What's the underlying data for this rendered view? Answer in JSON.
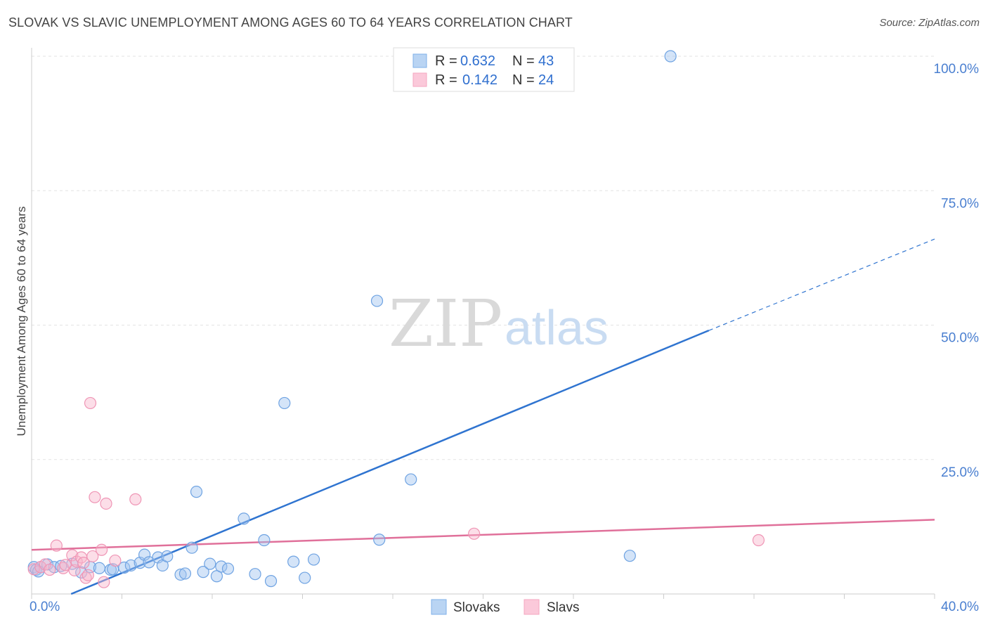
{
  "header": {
    "title": "SLOVAK VS SLAVIC UNEMPLOYMENT AMONG AGES 60 TO 64 YEARS CORRELATION CHART",
    "source": "Source: ZipAtlas.com"
  },
  "watermark": {
    "zip": "ZIP",
    "atlas": "atlas"
  },
  "legend_top": {
    "rows": [
      {
        "r_label": "R = ",
        "r_value": "0.632",
        "n_label": "N = ",
        "n_value": "43"
      },
      {
        "r_label": "R = ",
        "r_value": "0.142",
        "n_label": "N = ",
        "n_value": "24"
      }
    ]
  },
  "chart_data": {
    "type": "scatter",
    "title": "SLOVAK VS SLAVIC UNEMPLOYMENT AMONG AGES 60 TO 64 YEARS CORRELATION CHART",
    "ylabel": "Unemployment Among Ages 60 to 64 years",
    "xlabel": "",
    "xlim": [
      0,
      40
    ],
    "ylim": [
      0,
      100
    ],
    "x_tick_labels": [
      "0.0%",
      "40.0%"
    ],
    "y_tick_labels": [
      "100.0%",
      "75.0%",
      "50.0%",
      "25.0%"
    ],
    "y_ticks": [
      100,
      75,
      50,
      25
    ],
    "grid": true,
    "legend_position": "bottom",
    "colors": {
      "Slovaks": "#7fb0e8",
      "Slavs": "#f4a6c0",
      "slovak_line": "#2f74d0",
      "slav_line": "#e0709a"
    },
    "series": [
      {
        "name": "Slovaks",
        "stats": {
          "R": 0.632,
          "N": 43
        },
        "trend": {
          "x0": 1.75,
          "y0": 0,
          "x1": 30,
          "y1": 49,
          "dash_x_end": 40,
          "dash_y_end": 66
        },
        "points": [
          [
            0.1,
            5
          ],
          [
            0.2,
            4.5
          ],
          [
            0.4,
            5
          ],
          [
            0.7,
            5.5
          ],
          [
            1.0,
            5
          ],
          [
            1.3,
            5.2
          ],
          [
            1.8,
            5.6
          ],
          [
            2.2,
            4
          ],
          [
            2.6,
            5
          ],
          [
            3.0,
            4.8
          ],
          [
            3.5,
            4.5
          ],
          [
            3.6,
            4.6
          ],
          [
            4.1,
            4.9
          ],
          [
            4.4,
            5.3
          ],
          [
            4.8,
            5.8
          ],
          [
            5.0,
            7.3
          ],
          [
            5.2,
            5.9
          ],
          [
            5.6,
            6.8
          ],
          [
            5.8,
            5.3
          ],
          [
            6.0,
            7
          ],
          [
            6.6,
            3.6
          ],
          [
            6.8,
            3.8
          ],
          [
            7.1,
            8.6
          ],
          [
            7.3,
            19
          ],
          [
            7.6,
            4.1
          ],
          [
            7.9,
            5.6
          ],
          [
            8.2,
            3.3
          ],
          [
            8.4,
            5.1
          ],
          [
            8.7,
            4.7
          ],
          [
            9.4,
            14
          ],
          [
            9.9,
            3.7
          ],
          [
            10.3,
            10
          ],
          [
            10.6,
            2.4
          ],
          [
            11.2,
            35.5
          ],
          [
            11.6,
            6
          ],
          [
            12.1,
            3
          ],
          [
            12.5,
            6.4
          ],
          [
            15.3,
            54.5
          ],
          [
            15.4,
            10.1
          ],
          [
            16.8,
            21.3
          ],
          [
            26.5,
            7.1
          ],
          [
            28.3,
            100
          ],
          [
            0.3,
            4.2
          ]
        ]
      },
      {
        "name": "Slavs",
        "stats": {
          "R": 0.142,
          "N": 24
        },
        "trend": {
          "x0": 0,
          "y0": 8.2,
          "x1": 40,
          "y1": 13.8
        },
        "points": [
          [
            0.1,
            4.6
          ],
          [
            0.4,
            5
          ],
          [
            0.6,
            5.5
          ],
          [
            0.8,
            4.5
          ],
          [
            1.1,
            9
          ],
          [
            1.4,
            4.8
          ],
          [
            1.5,
            5.4
          ],
          [
            1.8,
            7.2
          ],
          [
            1.9,
            4.4
          ],
          [
            2.0,
            6
          ],
          [
            2.2,
            6.8
          ],
          [
            2.3,
            5.8
          ],
          [
            2.4,
            3
          ],
          [
            2.5,
            3.5
          ],
          [
            2.7,
            7
          ],
          [
            2.6,
            35.5
          ],
          [
            2.8,
            18
          ],
          [
            3.1,
            8.2
          ],
          [
            3.2,
            2.2
          ],
          [
            3.3,
            16.8
          ],
          [
            3.7,
            6.2
          ],
          [
            4.6,
            17.6
          ],
          [
            19.6,
            11.2
          ],
          [
            32.2,
            10
          ]
        ]
      }
    ]
  },
  "legend_bottom": {
    "items": [
      {
        "label": "Slovaks"
      },
      {
        "label": "Slavs"
      }
    ]
  }
}
